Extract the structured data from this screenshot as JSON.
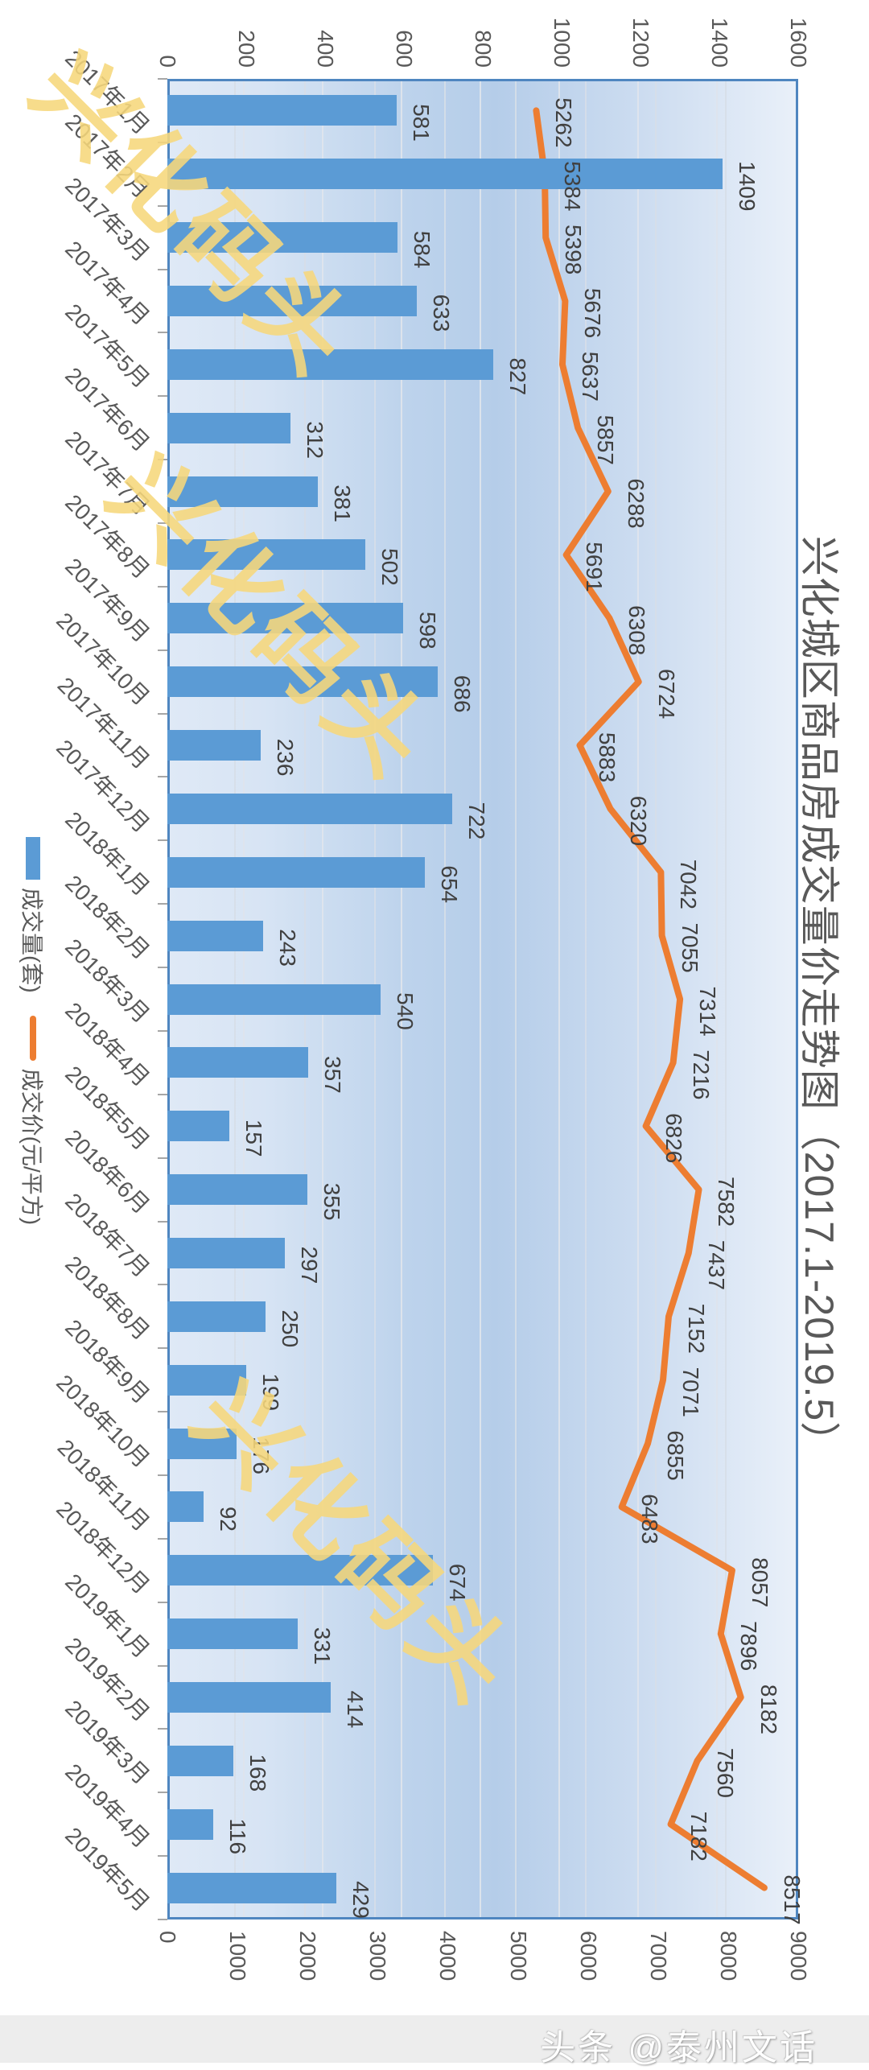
{
  "chart_data": {
    "type": "combo",
    "title": "兴化城区商品房成交量价走势图（2017.1-2019.5）",
    "rotation_deg": 90,
    "categories": [
      "2017年1月",
      "2017年2月",
      "2017年3月",
      "2017年4月",
      "2017年5月",
      "2017年6月",
      "2017年7月",
      "2017年8月",
      "2017年9月",
      "2017年10月",
      "2017年11月",
      "2017年12月",
      "2018年1月",
      "2018年2月",
      "2018年3月",
      "2018年4月",
      "2018年5月",
      "2018年6月",
      "2018年7月",
      "2018年8月",
      "2018年9月",
      "2018年10月",
      "2018年11月",
      "2018年12月",
      "2019年1月",
      "2019年2月",
      "2019年3月",
      "2019年4月",
      "2019年5月"
    ],
    "series": [
      {
        "name": "成交量(套)",
        "type": "bar",
        "color": "#5b9bd5",
        "axis": "volume",
        "values": [
          581,
          1409,
          584,
          633,
          827,
          312,
          381,
          502,
          598,
          686,
          236,
          722,
          654,
          243,
          540,
          357,
          157,
          355,
          297,
          250,
          199,
          176,
          92,
          674,
          331,
          414,
          168,
          116,
          429
        ]
      },
      {
        "name": "成交价(元/平方)",
        "type": "line",
        "color": "#ed7d31",
        "axis": "price",
        "values": [
          5262,
          5384,
          5398,
          5676,
          5637,
          5857,
          6288,
          5691,
          6308,
          6724,
          5883,
          6320,
          7042,
          7055,
          7314,
          7216,
          6826,
          7582,
          7437,
          7152,
          7071,
          6855,
          6483,
          8057,
          7896,
          8182,
          7560,
          7182,
          8517
        ]
      }
    ],
    "axes": {
      "volume": {
        "min": 0,
        "max": 1600,
        "step": 200
      },
      "price": {
        "min": 0,
        "max": 9000,
        "step": 1000
      }
    },
    "grid": true,
    "legend_position": "bottom",
    "watermark": "兴化码头",
    "colors": {
      "bar": "#5b9bd5",
      "line": "#ed7d31",
      "plot_border": "#4f86c0",
      "data_label": "#404040",
      "axis_label": "#595959",
      "watermark": "#f7d87c"
    }
  },
  "footer": {
    "credit": "头条 @泰州文话"
  }
}
